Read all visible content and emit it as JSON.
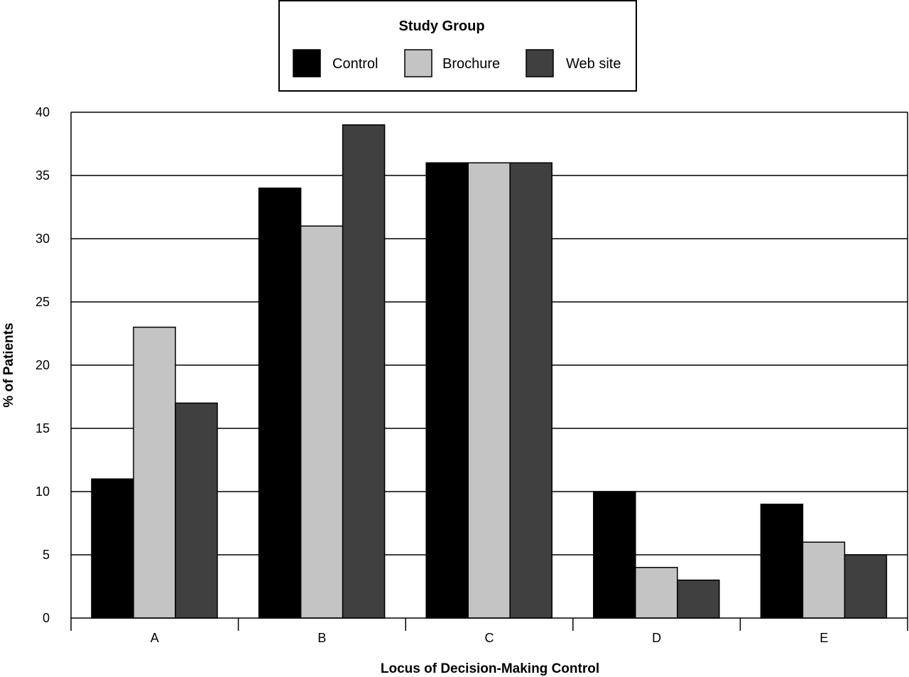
{
  "chart_data": {
    "type": "bar",
    "title": "",
    "xlabel": "Locus of Decision-Making Control",
    "ylabel": "% of Patients",
    "categories": [
      "A",
      "B",
      "C",
      "D",
      "E"
    ],
    "ylim": [
      0,
      40
    ],
    "yticks": [
      0,
      5,
      10,
      15,
      20,
      25,
      30,
      35,
      40
    ],
    "grid": true,
    "legend": {
      "title": "Study Group",
      "placement": "top-center, above plot"
    },
    "series": [
      {
        "name": "Control",
        "color": "#000000",
        "values": [
          11,
          34,
          36,
          10,
          9
        ]
      },
      {
        "name": "Brochure",
        "color": "#c4c4c4",
        "values": [
          23,
          31,
          36,
          4,
          6
        ]
      },
      {
        "name": "Web site",
        "color": "#404040",
        "values": [
          17,
          39,
          36,
          3,
          5
        ]
      }
    ]
  }
}
